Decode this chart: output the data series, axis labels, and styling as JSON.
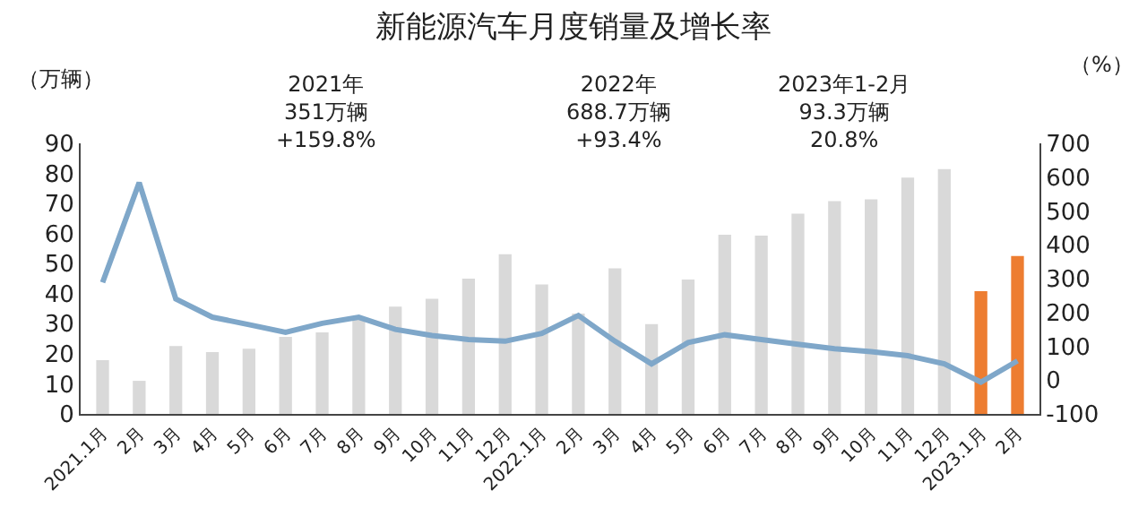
{
  "chart_data": {
    "type": "bar",
    "title": "新能源汽车月度销量及增长率",
    "ylabel": "（万辆）",
    "y2label": "（%）",
    "categories": [
      "2021.1月",
      "2月",
      "3月",
      "4月",
      "5月",
      "6月",
      "7月",
      "8月",
      "9月",
      "10月",
      "11月",
      "12月",
      "2022.1月",
      "2月",
      "3月",
      "4月",
      "5月",
      "6月",
      "7月",
      "8月",
      "9月",
      "10月",
      "11月",
      "12月",
      "2023.1月",
      "2月"
    ],
    "series": [
      {
        "colors": [
          "#d9d9d9",
          "#d9d9d9",
          "#d9d9d9",
          "#d9d9d9",
          "#d9d9d9",
          "#d9d9d9",
          "#d9d9d9",
          "#d9d9d9",
          "#d9d9d9",
          "#d9d9d9",
          "#d9d9d9",
          "#d9d9d9",
          "#d9d9d9",
          "#d9d9d9",
          "#d9d9d9",
          "#d9d9d9",
          "#d9d9d9",
          "#d9d9d9",
          "#d9d9d9",
          "#d9d9d9",
          "#d9d9d9",
          "#d9d9d9",
          "#d9d9d9",
          "#d9d9d9",
          "#ed7d31",
          "#ed7d31"
        ],
        "values": [
          17.9,
          11.0,
          22.6,
          20.6,
          21.7,
          25.6,
          27.1,
          32.1,
          35.7,
          38.3,
          45.0,
          53.1,
          43.1,
          33.4,
          48.4,
          29.9,
          44.7,
          59.6,
          59.3,
          66.6,
          70.8,
          71.4,
          78.6,
          81.4,
          40.8,
          52.5
        ]
      },
      {
        "type": "line",
        "axis": "y2",
        "color": "#7fa7c9",
        "values": [
          289,
          584,
          240,
          186,
          164,
          141,
          168,
          186,
          150,
          132,
          120,
          115,
          138,
          191,
          115,
          48,
          111,
          134,
          120,
          106,
          93,
          84,
          72,
          48,
          -6,
          57
        ]
      }
    ],
    "ylim": [
      0,
      90
    ],
    "yticks": [
      0,
      10,
      20,
      30,
      40,
      50,
      60,
      70,
      80,
      90
    ],
    "y2lim": [
      -100,
      700
    ],
    "y2ticks": [
      -100,
      0,
      100,
      200,
      300,
      400,
      500,
      600,
      700
    ],
    "annotations": [
      "2021年\n351万辆\n+159.8%",
      "2022年\n688.7万辆\n+93.4%",
      "2023年1-2月\n93.3万辆\n20.8%"
    ],
    "grid": false,
    "marker": "none",
    "line_style": "solid"
  }
}
